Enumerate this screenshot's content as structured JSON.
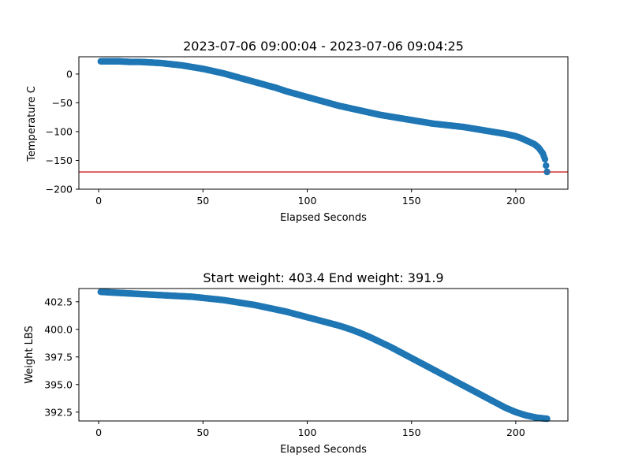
{
  "chart_data": [
    {
      "type": "scatter",
      "title": "2023-07-06 09:00:04 - 2023-07-06 09:04:25",
      "xlabel": "Elapsed Seconds",
      "ylabel": "Temperature C",
      "xlim": [
        -9.5,
        225
      ],
      "ylim": [
        -200,
        30
      ],
      "xticks": [
        0,
        50,
        100,
        150,
        200
      ],
      "xtick_labels": [
        "0",
        "50",
        "100",
        "150",
        "200"
      ],
      "yticks": [
        -200,
        -150,
        -100,
        -50,
        0
      ],
      "ytick_labels": [
        "−200",
        "−150",
        "−100",
        "−50",
        "0"
      ],
      "grid": false,
      "marker_color": "#1f77b4",
      "reference_line": {
        "y": -170,
        "color": "#d62728"
      },
      "series": [
        {
          "x": [
            1,
            5,
            10,
            15,
            20,
            25,
            30,
            35,
            40,
            45,
            50,
            55,
            60,
            65,
            70,
            75,
            80,
            85,
            90,
            95,
            100,
            105,
            110,
            115,
            120,
            125,
            130,
            135,
            140,
            145,
            150,
            155,
            160,
            165,
            170,
            175,
            180,
            185,
            190,
            195,
            200,
            203,
            206,
            209,
            211,
            213,
            214,
            215
          ],
          "y": [
            22,
            22,
            22,
            21,
            21,
            20,
            19,
            17,
            15,
            12,
            9,
            5,
            1,
            -4,
            -9,
            -14,
            -19,
            -24,
            -30,
            -35,
            -40,
            -45,
            -50,
            -55,
            -59,
            -63,
            -67,
            -71,
            -74,
            -77,
            -80,
            -83,
            -86,
            -88,
            -90,
            -92,
            -95,
            -98,
            -101,
            -104,
            -108,
            -112,
            -117,
            -122,
            -128,
            -138,
            -148,
            -170
          ]
        }
      ]
    },
    {
      "type": "scatter",
      "title": "Start weight: 403.4 End weight: 391.9",
      "xlabel": "Elapsed Seconds",
      "ylabel": "Weight LBS",
      "xlim": [
        -9.5,
        225
      ],
      "ylim": [
        391.7,
        403.7
      ],
      "xticks": [
        0,
        50,
        100,
        150,
        200
      ],
      "xtick_labels": [
        "0",
        "50",
        "100",
        "150",
        "200"
      ],
      "yticks": [
        392.5,
        395.0,
        397.5,
        400.0,
        402.5
      ],
      "ytick_labels": [
        "392.5",
        "395.0",
        "397.5",
        "400.0",
        "402.5"
      ],
      "grid": false,
      "marker_color": "#1f77b4",
      "series": [
        {
          "x": [
            1,
            5,
            10,
            15,
            20,
            25,
            30,
            35,
            40,
            45,
            50,
            55,
            60,
            65,
            70,
            75,
            80,
            85,
            90,
            95,
            100,
            105,
            110,
            115,
            120,
            125,
            130,
            135,
            140,
            145,
            150,
            155,
            160,
            165,
            170,
            175,
            180,
            185,
            190,
            195,
            200,
            205,
            210,
            215
          ],
          "y": [
            403.4,
            403.35,
            403.3,
            403.25,
            403.2,
            403.15,
            403.1,
            403.05,
            403.0,
            402.95,
            402.85,
            402.75,
            402.65,
            402.5,
            402.35,
            402.2,
            402.0,
            401.8,
            401.6,
            401.35,
            401.1,
            400.85,
            400.6,
            400.35,
            400.05,
            399.7,
            399.3,
            398.85,
            398.4,
            397.9,
            397.4,
            396.9,
            396.4,
            395.9,
            395.4,
            394.9,
            394.4,
            393.9,
            393.4,
            392.9,
            392.5,
            392.2,
            392.0,
            391.9
          ]
        }
      ]
    }
  ]
}
